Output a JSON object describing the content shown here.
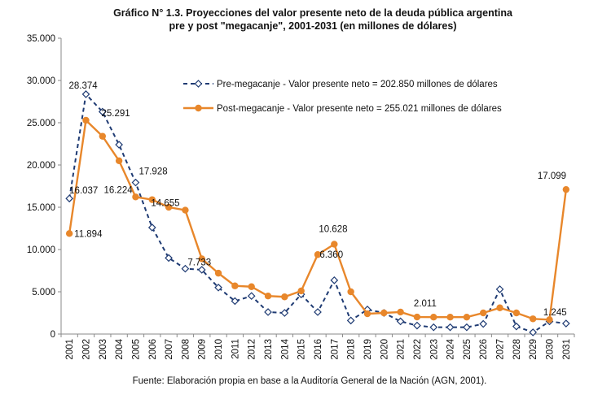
{
  "chart_data": {
    "type": "line",
    "title_line1": "Gráfico N° 1.3. Proyecciones  del valor presente neto de la deuda pública argentina",
    "title_line2": "pre y post \"megacanje\", 2001-2031 (en millones  de dólares)",
    "source": "Fuente: Elaboración propia en base a la Auditoría General de la Nación (AGN, 2001).",
    "x": [
      "2001",
      "2002",
      "2003",
      "2004",
      "2005",
      "2006",
      "2007",
      "2008",
      "2009",
      "2010",
      "2011",
      "2012",
      "2013",
      "2014",
      "2015",
      "2016",
      "2017",
      "2018",
      "2019",
      "2020",
      "2021",
      "2022",
      "2023",
      "2024",
      "2025",
      "2026",
      "2027",
      "2028",
      "2029",
      "2030",
      "2031"
    ],
    "ylim": [
      0,
      35000
    ],
    "yticks": [
      "0",
      "5.000",
      "10.000",
      "15.000",
      "20.000",
      "25.000",
      "30.000",
      "35.000"
    ],
    "ytick_values": [
      0,
      5000,
      10000,
      15000,
      20000,
      25000,
      30000,
      35000
    ],
    "grid": false,
    "legend_position": "top-right",
    "series": [
      {
        "name": "Pre-megacanje - Valor presente neto = 202.850 millones de dólares",
        "color": "#1f3b73",
        "style": "dashed",
        "marker": "diamond-open",
        "values": [
          16037,
          28374,
          26300,
          22400,
          17928,
          12600,
          9000,
          7733,
          7600,
          5500,
          3900,
          4500,
          2600,
          2500,
          4700,
          2600,
          6360,
          1600,
          2900,
          2500,
          1500,
          1000,
          800,
          800,
          800,
          1200,
          5300,
          900,
          200,
          1500,
          1245
        ],
        "labels": [
          {
            "index": 0,
            "text": "16.037"
          },
          {
            "index": 1,
            "text": "28.374"
          },
          {
            "index": 4,
            "text": "17.928"
          },
          {
            "index": 7,
            "text": "7.733"
          },
          {
            "index": 16,
            "text": "6.360"
          },
          {
            "index": 30,
            "text": "1.245"
          }
        ]
      },
      {
        "name": "Post-megacanje - Valor presente neto = 255.021 millones de dólares",
        "color": "#e8872b",
        "style": "solid",
        "marker": "circle-filled",
        "values": [
          11894,
          25291,
          23400,
          20500,
          16224,
          15900,
          15000,
          14655,
          8900,
          7200,
          5700,
          5600,
          4500,
          4400,
          5100,
          9400,
          10628,
          5000,
          2400,
          2500,
          2600,
          2011,
          2000,
          2000,
          2000,
          2500,
          3100,
          2500,
          1800,
          1700,
          17099
        ],
        "labels": [
          {
            "index": 0,
            "text": "11.894"
          },
          {
            "index": 1,
            "text": "25.291"
          },
          {
            "index": 4,
            "text": "16.224"
          },
          {
            "index": 7,
            "text": "14.655"
          },
          {
            "index": 16,
            "text": "10.628"
          },
          {
            "index": 21,
            "text": "2.011"
          },
          {
            "index": 30,
            "text": "17.099"
          }
        ]
      }
    ]
  }
}
